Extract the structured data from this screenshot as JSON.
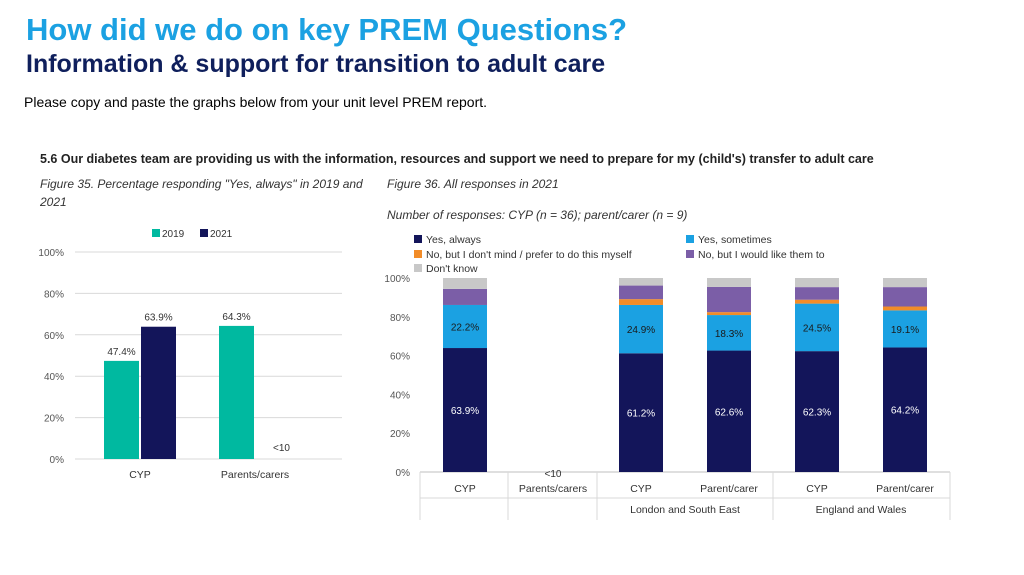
{
  "header": {
    "title": "How did we do on key PREM Questions?",
    "subtitle": "Information & support for transition to adult care",
    "instruction": "Please copy and paste the graphs below from your unit level PREM report."
  },
  "report": {
    "section_heading": "5.6 Our diabetes team are providing us with the information, resources and support we need to prepare for my (child's) transfer to adult care",
    "fig35_caption": "Figure 35. Percentage responding \"Yes, always\" in 2019 and 2021",
    "fig36_caption": "Figure 36. All responses in 2021",
    "fig36_ncount": "Number of responses: CYP (n = 36); parent/carer (n = 9)"
  },
  "chart_data": [
    {
      "type": "bar",
      "categories": [
        "CYP",
        "Parents/carers"
      ],
      "series": [
        {
          "name": "2019",
          "color": "#00b9a0",
          "values": [
            47.4,
            64.3
          ],
          "labels": [
            "47.4%",
            "64.3%"
          ]
        },
        {
          "name": "2021",
          "color": "#13155a",
          "values": [
            63.9,
            null
          ],
          "labels": [
            "63.9%",
            "<10"
          ]
        }
      ],
      "yticks": [
        "0%",
        "20%",
        "40%",
        "60%",
        "80%",
        "100%"
      ],
      "ylim": [
        0,
        100
      ],
      "legend_position": "top"
    },
    {
      "type": "bar",
      "stacked": true,
      "categories": [
        "CYP",
        "Parents/carers",
        "CYP",
        "Parent/carer",
        "CYP",
        "Parent/carer"
      ],
      "group_labels": [
        "London and South East",
        "England and Wales"
      ],
      "series": [
        {
          "name": "Yes, always",
          "color": "#13155a",
          "values": [
            63.9,
            null,
            61.2,
            62.6,
            62.3,
            64.2
          ]
        },
        {
          "name": "Yes, sometimes",
          "color": "#1ba1e2",
          "values": [
            22.2,
            null,
            24.9,
            18.3,
            24.5,
            19.1
          ]
        },
        {
          "name": "No, but I don't mind / prefer to do this myself",
          "color": "#f28c28",
          "values": [
            0,
            null,
            3,
            1.5,
            2,
            2
          ]
        },
        {
          "name": "No, but I would like them to",
          "color": "#7b5ea7",
          "values": [
            8.3,
            null,
            7,
            13,
            6.5,
            10
          ]
        },
        {
          "name": "Don't know",
          "color": "#c8c8c8",
          "values": [
            5.6,
            null,
            3.9,
            4.6,
            4.7,
            4.7
          ]
        }
      ],
      "data_labels": {
        "Yes, always": [
          "63.9%",
          "",
          "61.2%",
          "62.6%",
          "62.3%",
          "64.2%"
        ],
        "Yes, sometimes": [
          "22.2%",
          "",
          "24.9%",
          "18.3%",
          "24.5%",
          "19.1%"
        ]
      },
      "suppressed_label": "<10",
      "yticks": [
        "0%",
        "20%",
        "40%",
        "60%",
        "80%",
        "100%"
      ],
      "ylim": [
        0,
        100
      ],
      "legend_position": "top"
    }
  ]
}
